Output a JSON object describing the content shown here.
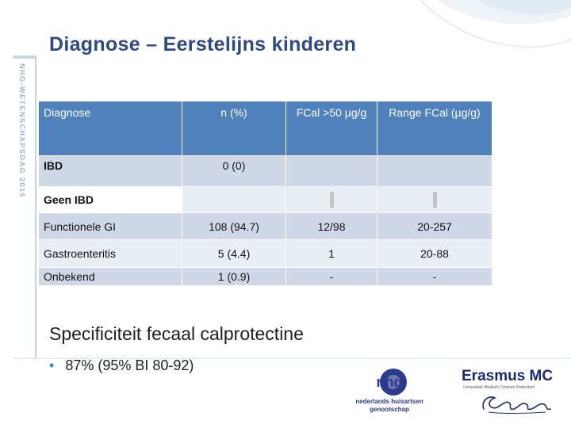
{
  "slide": {
    "title": "Diagnose – Eerstelijns kinderen",
    "side_label": "NHG-WETENSCHAPSDAG 2015"
  },
  "table": {
    "headers": {
      "diagnose": "Diagnose",
      "n": "n (%)",
      "fcal": "FCal >50 µg/g",
      "range": "Range FCal (µg/g)"
    },
    "rows": [
      {
        "diagnose": "IBD",
        "n": "0 (0)",
        "fcal": "",
        "range": ""
      },
      {
        "diagnose": "Geen IBD",
        "n": "",
        "fcal": "",
        "range": ""
      },
      {
        "diagnose": "Functionele GI",
        "n": "108 (94.7)",
        "fcal": "12/98",
        "range": "20-257"
      },
      {
        "diagnose": "Gastroenteritis",
        "n": "5 (4.4)",
        "fcal": "1",
        "range": "20-88"
      },
      {
        "diagnose": "Onbekend",
        "n": "1 (0.9)",
        "fcal": "-",
        "range": "-"
      }
    ]
  },
  "content": {
    "subheading": "Specificiteit fecaal calprotectine",
    "bullet": "87% (95% BI 80-92)"
  },
  "logos": {
    "nhg_mark": "nhg",
    "nhg_caption_line1": "nederlands huisartsen",
    "nhg_caption_line2": "genootschap",
    "emc_name": "Erasmus MC",
    "emc_sub": "Universitair Medisch Centrum Rotterdam",
    "emc_sign": "Erasmus"
  },
  "colors": {
    "title": "#2f4a80",
    "header_fill": "#4f81bd",
    "row_dark": "#d0d8e8",
    "row_light": "#e9edf4",
    "nhg_blue": "#2b3a8c",
    "emc_navy": "#1a2b6e"
  }
}
